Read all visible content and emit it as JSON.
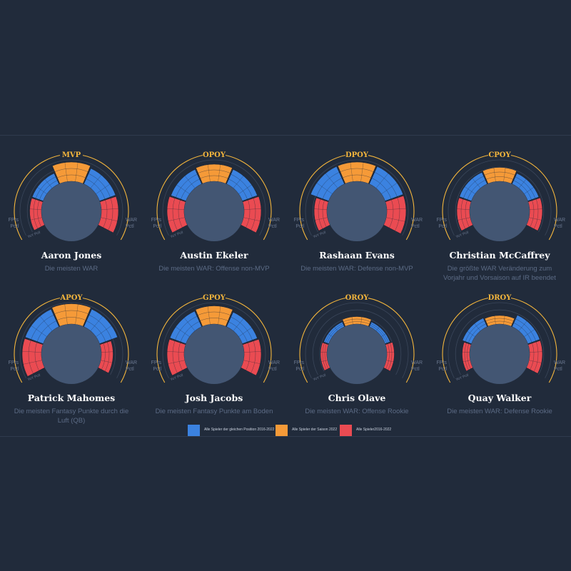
{
  "colors": {
    "background": "#212b3b",
    "center": "#435673",
    "award": "#f4b63c",
    "axis_label": "#6b7890",
    "guide": "#3a465a",
    "position": "#3b82e0",
    "season": "#f59a38",
    "all": "#ea4b52"
  },
  "axis_labels": {
    "fpts": [
      "FPts",
      "Pctl"
    ],
    "war": [
      "WAR",
      "Pctl"
    ],
    "yoy": "YoY Pctl"
  },
  "chart_data": [
    {
      "type": "radial-bar",
      "award": "MVP",
      "player": "Aaron Jones",
      "description": "Die meisten WAR",
      "segments": [
        {
          "metric": "FPts Pctl",
          "cohort": "all",
          "value": 0.55
        },
        {
          "metric": "FPts Pctl",
          "cohort": "position",
          "value": 0.55
        },
        {
          "metric": "YoY Pctl",
          "cohort": "season",
          "value": 0.9
        },
        {
          "metric": "WAR Pctl",
          "cohort": "position",
          "value": 0.8
        },
        {
          "metric": "WAR Pctl",
          "cohort": "all",
          "value": 0.8
        }
      ]
    },
    {
      "type": "radial-bar",
      "award": "OPOY",
      "player": "Austin Ekeler",
      "description": "Die meisten WAR: Offense non-MVP",
      "segments": [
        {
          "metric": "FPts Pctl",
          "cohort": "all",
          "value": 0.8
        },
        {
          "metric": "FPts Pctl",
          "cohort": "position",
          "value": 0.75
        },
        {
          "metric": "YoY Pctl",
          "cohort": "season",
          "value": 0.8
        },
        {
          "metric": "WAR Pctl",
          "cohort": "position",
          "value": 0.75
        },
        {
          "metric": "WAR Pctl",
          "cohort": "all",
          "value": 0.8
        }
      ]
    },
    {
      "type": "radial-bar",
      "award": "DPOY",
      "player": "Rashaan Evans",
      "description": "Die meisten WAR: Defense non-MVP",
      "segments": [
        {
          "metric": "FPts Pctl",
          "cohort": "all",
          "value": 0.6
        },
        {
          "metric": "FPts Pctl",
          "cohort": "position",
          "value": 0.9
        },
        {
          "metric": "YoY Pctl",
          "cohort": "season",
          "value": 0.9
        },
        {
          "metric": "WAR Pctl",
          "cohort": "position",
          "value": 0.9
        },
        {
          "metric": "WAR Pctl",
          "cohort": "all",
          "value": 0.9
        }
      ]
    },
    {
      "type": "radial-bar",
      "award": "CPOY",
      "player": "Christian McCaffrey",
      "description": "Die größte WAR Veränderung zum Vorjahr und Vorsaison auf IR beendet",
      "segments": [
        {
          "metric": "FPts Pctl",
          "cohort": "all",
          "value": 0.6
        },
        {
          "metric": "FPts Pctl",
          "cohort": "position",
          "value": 0.6
        },
        {
          "metric": "YoY Pctl",
          "cohort": "season",
          "value": 0.65
        },
        {
          "metric": "WAR Pctl",
          "cohort": "position",
          "value": 0.55
        },
        {
          "metric": "WAR Pctl",
          "cohort": "all",
          "value": 0.6
        }
      ]
    },
    {
      "type": "radial-bar",
      "award": "APOY",
      "player": "Patrick Mahomes",
      "description": "Die meisten Fantasy Punkte durch die Luft (QB)",
      "segments": [
        {
          "metric": "FPts Pctl",
          "cohort": "all",
          "value": 0.9
        },
        {
          "metric": "FPts Pctl",
          "cohort": "position",
          "value": 0.9
        },
        {
          "metric": "YoY Pctl",
          "cohort": "season",
          "value": 0.95
        },
        {
          "metric": "WAR Pctl",
          "cohort": "position",
          "value": 0.9
        },
        {
          "metric": "WAR Pctl",
          "cohort": "all",
          "value": 0.55
        }
      ]
    },
    {
      "type": "radial-bar",
      "award": "GPOY",
      "player": "Josh Jacobs",
      "description": "Die meisten Fantasy Punkte am Boden",
      "segments": [
        {
          "metric": "FPts Pctl",
          "cohort": "all",
          "value": 0.8
        },
        {
          "metric": "FPts Pctl",
          "cohort": "position",
          "value": 0.8
        },
        {
          "metric": "YoY Pctl",
          "cohort": "season",
          "value": 0.85
        },
        {
          "metric": "WAR Pctl",
          "cohort": "position",
          "value": 0.75
        },
        {
          "metric": "WAR Pctl",
          "cohort": "all",
          "value": 0.8
        }
      ]
    },
    {
      "type": "radial-bar",
      "award": "OROY",
      "player": "Chris Olave",
      "description": "Die meisten WAR: Offense Rookie",
      "segments": [
        {
          "metric": "FPts Pctl",
          "cohort": "all",
          "value": 0.3
        },
        {
          "metric": "FPts Pctl",
          "cohort": "position",
          "value": 0.25
        },
        {
          "metric": "YoY Pctl",
          "cohort": "season",
          "value": 0.35
        },
        {
          "metric": "WAR Pctl",
          "cohort": "position",
          "value": 0.25
        },
        {
          "metric": "WAR Pctl",
          "cohort": "all",
          "value": 0.35
        }
      ]
    },
    {
      "type": "radial-bar",
      "award": "DROY",
      "player": "Quay Walker",
      "description": "Die meisten WAR: Defense Rookie",
      "segments": [
        {
          "metric": "FPts Pctl",
          "cohort": "all",
          "value": 0.35
        },
        {
          "metric": "FPts Pctl",
          "cohort": "position",
          "value": 0.45
        },
        {
          "metric": "YoY Pctl",
          "cohort": "season",
          "value": 0.4
        },
        {
          "metric": "WAR Pctl",
          "cohort": "position",
          "value": 0.6
        },
        {
          "metric": "WAR Pctl",
          "cohort": "all",
          "value": 0.6
        }
      ]
    }
  ],
  "legend": [
    {
      "cohort": "position",
      "label": "Alle Spieler der gleichen Position 2016-2022"
    },
    {
      "cohort": "season",
      "label": "Alle Spieler der Saison 2022"
    },
    {
      "cohort": "all",
      "label": "Alle Spieler2016-2022"
    }
  ]
}
